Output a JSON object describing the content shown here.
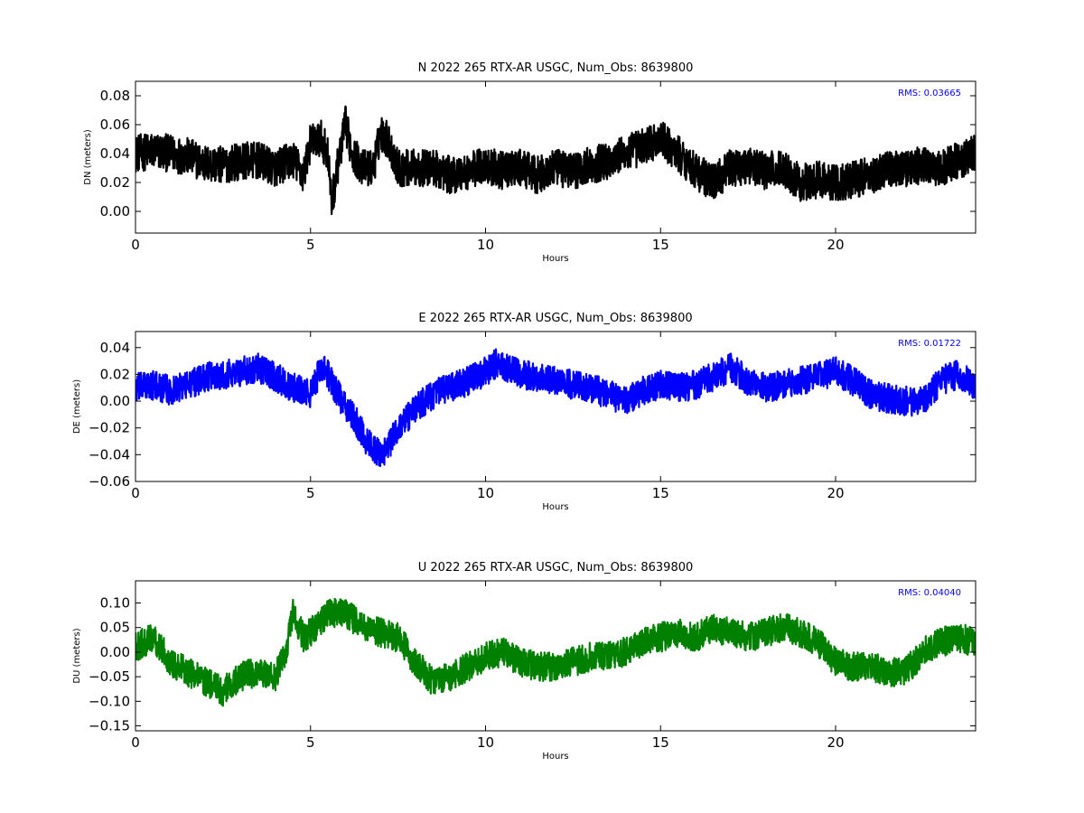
{
  "chart_data": [
    {
      "type": "line",
      "title": "N 2022 265 RTX-AR  USGC, Num_Obs: 8639800",
      "xlabel": "Hours",
      "ylabel": "DN (meters)",
      "xlim": [
        0,
        24
      ],
      "ylim": [
        -0.015,
        0.09
      ],
      "xticks": [
        0,
        5,
        10,
        15,
        20
      ],
      "yticks": [
        0.0,
        0.02,
        0.04,
        0.06,
        0.08
      ],
      "ytick_labels": [
        "0.00",
        "0.02",
        "0.04",
        "0.06",
        "0.08"
      ],
      "grid": false,
      "color": "#000000",
      "annotation": "RMS:  0.03665",
      "annotation_color": "#0000ff",
      "series": [
        {
          "x": [
            0,
            0.5,
            1,
            1.5,
            2,
            2.5,
            3,
            3.5,
            4,
            4.5,
            4.8,
            5.0,
            5.3,
            5.5,
            5.6,
            5.8,
            6.0,
            6.2,
            6.5,
            6.8,
            7.0,
            7.2,
            7.5,
            8,
            8.5,
            9,
            9.5,
            10,
            10.5,
            11,
            11.5,
            12,
            12.5,
            13,
            13.5,
            14,
            14.5,
            15,
            15.5,
            16,
            16.5,
            17,
            17.5,
            18,
            18.5,
            19,
            19.5,
            20,
            20.5,
            21,
            21.5,
            22,
            22.5,
            23,
            23.5,
            24
          ],
          "y": [
            0.04,
            0.042,
            0.04,
            0.038,
            0.033,
            0.032,
            0.035,
            0.035,
            0.03,
            0.036,
            0.025,
            0.048,
            0.05,
            0.04,
            0.005,
            0.035,
            0.06,
            0.04,
            0.03,
            0.03,
            0.055,
            0.05,
            0.03,
            0.03,
            0.03,
            0.025,
            0.028,
            0.032,
            0.028,
            0.03,
            0.025,
            0.03,
            0.028,
            0.032,
            0.035,
            0.04,
            0.045,
            0.05,
            0.04,
            0.028,
            0.02,
            0.03,
            0.032,
            0.028,
            0.03,
            0.02,
            0.022,
            0.02,
            0.022,
            0.025,
            0.03,
            0.03,
            0.032,
            0.03,
            0.035,
            0.04
          ],
          "spread": 0.013
        }
      ]
    },
    {
      "type": "line",
      "title": "E 2022 265 RTX-AR  USGC, Num_Obs: 8639800",
      "xlabel": "Hours",
      "ylabel": "DE (meters)",
      "xlim": [
        0,
        24
      ],
      "ylim": [
        -0.06,
        0.052
      ],
      "xticks": [
        0,
        5,
        10,
        15,
        20
      ],
      "yticks": [
        -0.06,
        -0.04,
        -0.02,
        0.0,
        0.02,
        0.04
      ],
      "ytick_labels": [
        "−0.06",
        "−0.04",
        "−0.02",
        "0.00",
        "0.02",
        "0.04"
      ],
      "grid": false,
      "color": "#0000ff",
      "annotation": "RMS:  0.01722",
      "annotation_color": "#0000ff",
      "series": [
        {
          "x": [
            0,
            0.5,
            1,
            1.5,
            2,
            2.5,
            3,
            3.5,
            4,
            4.5,
            5,
            5.3,
            5.5,
            6,
            6.3,
            6.6,
            6.8,
            7.0,
            7.2,
            7.5,
            8,
            8.5,
            9,
            9.5,
            10,
            10.3,
            10.5,
            11,
            11.5,
            12,
            12.5,
            13,
            13.5,
            14,
            14.5,
            15,
            15.5,
            16,
            16.5,
            17,
            17.5,
            18,
            18.5,
            19,
            19.5,
            20,
            20.5,
            21,
            21.5,
            22,
            22.5,
            23,
            23.5,
            24
          ],
          "y": [
            0.01,
            0.012,
            0.008,
            0.012,
            0.018,
            0.02,
            0.022,
            0.025,
            0.018,
            0.01,
            0.005,
            0.025,
            0.02,
            -0.005,
            -0.015,
            -0.03,
            -0.035,
            -0.04,
            -0.035,
            -0.02,
            -0.005,
            0.005,
            0.01,
            0.015,
            0.022,
            0.028,
            0.025,
            0.02,
            0.018,
            0.015,
            0.012,
            0.01,
            0.005,
            0.0,
            0.008,
            0.012,
            0.01,
            0.012,
            0.018,
            0.025,
            0.015,
            0.01,
            0.012,
            0.015,
            0.018,
            0.022,
            0.015,
            0.005,
            0.002,
            0.0,
            0.0,
            0.015,
            0.02,
            0.012
          ],
          "spread": 0.011
        }
      ]
    },
    {
      "type": "line",
      "title": "U 2022 265 RTX-AR  USGC, Num_Obs: 8639800",
      "xlabel": "Hours",
      "ylabel": "DU (meters)",
      "xlim": [
        0,
        24
      ],
      "ylim": [
        -0.16,
        0.145
      ],
      "xticks": [
        0,
        5,
        10,
        15,
        20
      ],
      "yticks": [
        -0.15,
        -0.1,
        -0.05,
        0.0,
        0.05,
        0.1
      ],
      "ytick_labels": [
        "−0.15",
        "−0.10",
        "−0.05",
        "0.00",
        "0.05",
        "0.10"
      ],
      "grid": false,
      "color": "#008000",
      "annotation": "RMS:  0.04040",
      "annotation_color": "#0000ff",
      "series": [
        {
          "x": [
            0,
            0.5,
            1,
            1.5,
            2,
            2.5,
            3,
            3.5,
            4,
            4.3,
            4.5,
            4.8,
            5,
            5.5,
            6,
            6.5,
            7,
            7.5,
            8,
            8.5,
            9,
            9.5,
            10,
            10.5,
            11,
            11.5,
            12,
            12.5,
            13,
            13.5,
            14,
            14.5,
            15,
            15.5,
            16,
            16.5,
            17,
            17.5,
            18,
            18.5,
            19,
            19.5,
            20,
            20.5,
            21,
            21.5,
            22,
            22.5,
            23,
            23.5,
            24
          ],
          "y": [
            0.01,
            0.03,
            -0.02,
            -0.04,
            -0.06,
            -0.08,
            -0.05,
            -0.04,
            -0.05,
            0.0,
            0.08,
            0.03,
            0.04,
            0.08,
            0.08,
            0.05,
            0.04,
            0.03,
            -0.02,
            -0.06,
            -0.05,
            -0.03,
            -0.01,
            0.0,
            -0.02,
            -0.03,
            -0.03,
            -0.02,
            -0.01,
            -0.005,
            0.0,
            0.02,
            0.03,
            0.04,
            0.03,
            0.05,
            0.04,
            0.03,
            0.04,
            0.05,
            0.04,
            0.02,
            -0.02,
            -0.03,
            -0.03,
            -0.04,
            -0.04,
            0.0,
            0.02,
            0.03,
            0.02
          ],
          "spread": 0.03
        }
      ]
    }
  ]
}
